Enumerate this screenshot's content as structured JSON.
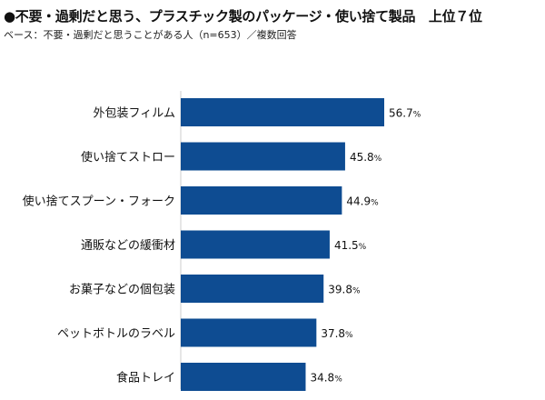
{
  "title": "●不要・過剰だと思う、プラスチック製のパッケージ・使い捨て製品　上位７位",
  "subtitle": "ベース：不要・過剰だと思うことがある人（n=653）／複数回答",
  "chart_data": {
    "type": "bar",
    "orientation": "horizontal",
    "categories": [
      "外包装フィルム",
      "使い捨てストロー",
      "使い捨てスプーン・フォーク",
      "通販などの緩衝材",
      "お菓子などの個包装",
      "ペットボトルのラベル",
      "食品トレイ"
    ],
    "values": [
      56.7,
      45.8,
      44.9,
      41.5,
      39.8,
      37.8,
      34.8
    ],
    "value_labels": [
      "56.7",
      "45.8",
      "44.9",
      "41.5",
      "39.8",
      "37.8",
      "34.8"
    ],
    "unit": "%",
    "xlim": [
      0,
      100
    ],
    "grid": false,
    "bar_color": "#0e4c92"
  }
}
